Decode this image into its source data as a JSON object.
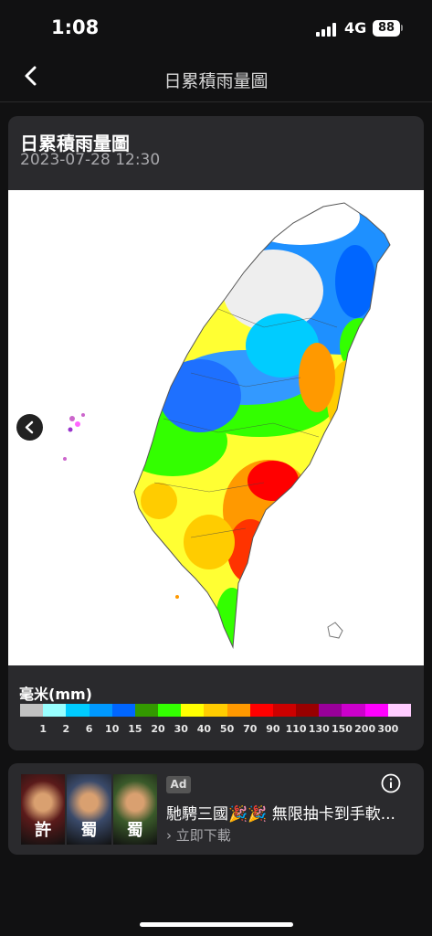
{
  "status_bar": {
    "time": "1:08",
    "network": "4G",
    "battery": "88"
  },
  "nav": {
    "title": "日累積雨量圖"
  },
  "card": {
    "title": "日累積雨量圖",
    "datetime": "2023-07-28  12:30"
  },
  "legend": {
    "unit_label": "毫米(mm)",
    "colors": [
      "#c1c1c1",
      "#99ffff",
      "#00ccff",
      "#0099ff",
      "#0066ff",
      "#339900",
      "#33ff00",
      "#ffff00",
      "#ffcc00",
      "#ff9900",
      "#ff0000",
      "#cc0000",
      "#990000",
      "#990099",
      "#cc00cc",
      "#ff00ff",
      "#ffccff"
    ],
    "ticks": [
      "1",
      "2",
      "6",
      "10",
      "15",
      "20",
      "30",
      "40",
      "50",
      "70",
      "90",
      "110",
      "130",
      "150",
      "200",
      "300"
    ]
  },
  "ad": {
    "badge": "Ad",
    "title": "馳騁三國🎉🎉 無限抽卡到手軟...",
    "cta": "立即下載",
    "image_captions": [
      "許",
      "蜀",
      "蜀"
    ],
    "image_colors": [
      "#5a1a1a",
      "#3a4a6a",
      "#3a5a2a"
    ]
  }
}
